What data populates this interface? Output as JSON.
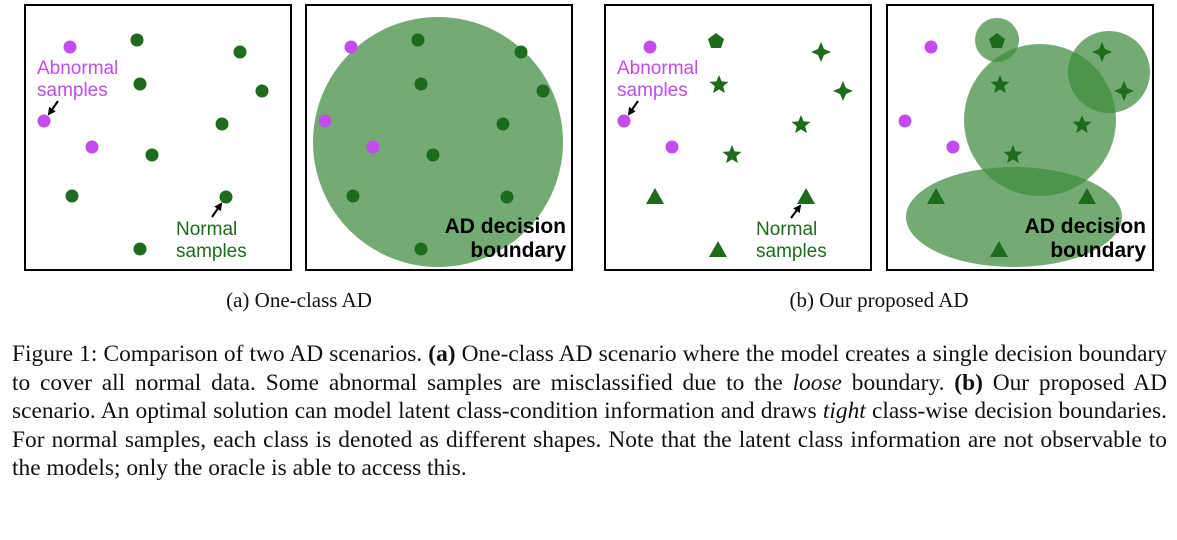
{
  "figure": {
    "colors": {
      "normal": "#1e6b1e",
      "abnormal": "#c24cf0",
      "boundary_fill": "#3f8a3f",
      "frame": "#000000"
    },
    "panel_a": {
      "subcaption": "(a) One-class AD",
      "abnormal_label_line1": "Abnormal",
      "abnormal_label_line2": "samples",
      "normal_label_line1": "Normal",
      "normal_label_line2": "samples",
      "boundary_label_line1": "AD decision",
      "boundary_label_line2": "boundary"
    },
    "panel_b": {
      "subcaption": "(b) Our proposed AD",
      "abnormal_label_line1": "Abnormal",
      "abnormal_label_line2": "samples",
      "normal_label_line1": "Normal",
      "normal_label_line2": "samples",
      "boundary_label_line1": "AD decision",
      "boundary_label_line2": "boundary"
    },
    "icons": {
      "normal_a": "filled-circle",
      "abnormal": "filled-circle",
      "class_pentagon": "pentagon",
      "class_star5": "five-point-star",
      "class_star4": "four-point-star",
      "class_triangle": "triangle"
    }
  },
  "caption": {
    "prefix": "Figure 1: Comparison of two AD scenarios. ",
    "a_tag": "(a)",
    "a_text_1": " One-class AD scenario where the model creates a single decision boundary to cover all normal data. Some abnormal samples are misclassified due to the ",
    "a_emph": "loose",
    "a_text_2": " boundary. ",
    "b_tag": "(b)",
    "b_text_1": " Our proposed AD scenario. An optimal solution can model latent class-condition information and draws ",
    "b_emph": "tight",
    "b_text_2": " class-wise decision boundaries. For normal samples, each class is denoted as different shapes. Note that the latent class information are not observable to the models; only the oracle is able to access this."
  }
}
